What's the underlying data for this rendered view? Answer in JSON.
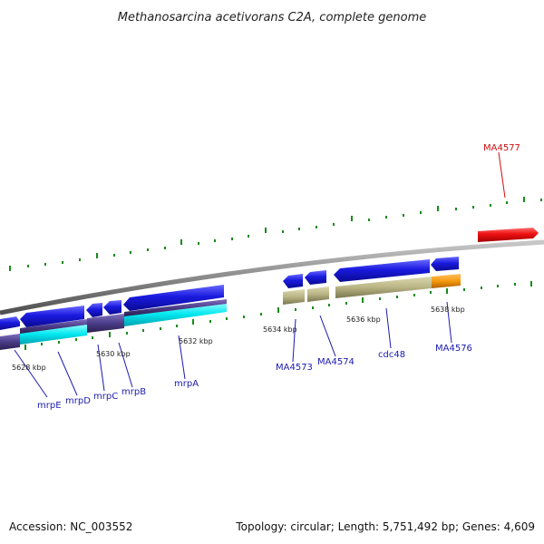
{
  "title": "Methanosarcina acetivorans C2A, complete genome",
  "footer": {
    "accession": "Accession: NC_003552",
    "summary": "Topology: circular; Length: 5,751,492 bp; Genes: 4,609"
  },
  "scale_labels": [
    "5628 kbp",
    "5630 kbp",
    "5632 kbp",
    "5634 kbp",
    "5636 kbp",
    "5638 kbp"
  ],
  "gene_labels": [
    {
      "text": "mrpE"
    },
    {
      "text": "mrpD"
    },
    {
      "text": "mrpC"
    },
    {
      "text": "mrpB"
    },
    {
      "text": "mrpA"
    },
    {
      "text": "MA4573"
    },
    {
      "text": "MA4574"
    },
    {
      "text": "cdc48"
    },
    {
      "text": "MA4576"
    },
    {
      "text": "MA4577"
    }
  ],
  "colors": {
    "backbone": "#8a8a8a",
    "gene_blue": "#1a1ad8",
    "gene_red": "#e01010",
    "gene_cyan": "#00e8f0",
    "gene_navy": "#4a3c88",
    "gene_khaki": "#b8b484",
    "gene_orange": "#f59a10",
    "tick_green": "#1a8a1a",
    "label_blue": "#1a1ab0",
    "label_red": "#cc1010"
  }
}
